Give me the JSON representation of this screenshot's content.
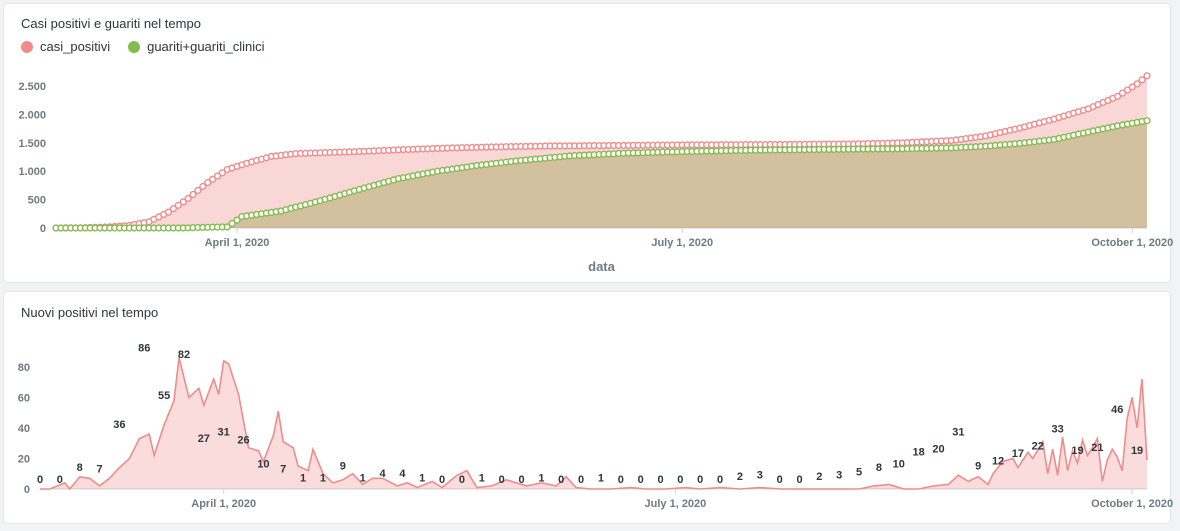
{
  "colors": {
    "positivi": "#ef8c8c",
    "guariti": "#84bb4c",
    "axis": "#6f7a83"
  },
  "chart_data": [
    {
      "type": "area",
      "title": "Casi positivi e guariti nel tempo",
      "xlabel": "data",
      "ylabel": "",
      "ylim": [
        0,
        2800
      ],
      "yticks": [
        {
          "value": 0,
          "label": "0"
        },
        {
          "value": 500,
          "label": "500"
        },
        {
          "value": 1000,
          "label": "1.000"
        },
        {
          "value": 1500,
          "label": "1.500"
        },
        {
          "value": 2000,
          "label": "2.000"
        },
        {
          "value": 2500,
          "label": "2.500"
        }
      ],
      "xlim": [
        "2020-02-24",
        "2020-10-04"
      ],
      "xticks": [
        {
          "date": "2020-04-01",
          "label": "April 1, 2020"
        },
        {
          "date": "2020-07-01",
          "label": "July 1, 2020"
        },
        {
          "date": "2020-10-01",
          "label": "October 1, 2020"
        }
      ],
      "legend": "top-left",
      "series": [
        {
          "name": "casi_positivi",
          "points": [
            [
              "2020-02-24",
              0
            ],
            [
              "2020-03-01",
              5
            ],
            [
              "2020-03-06",
              20
            ],
            [
              "2020-03-10",
              45
            ],
            [
              "2020-03-14",
              110
            ],
            [
              "2020-03-18",
              280
            ],
            [
              "2020-03-22",
              520
            ],
            [
              "2020-03-26",
              800
            ],
            [
              "2020-03-30",
              1030
            ],
            [
              "2020-04-03",
              1140
            ],
            [
              "2020-04-08",
              1260
            ],
            [
              "2020-04-13",
              1310
            ],
            [
              "2020-04-20",
              1330
            ],
            [
              "2020-04-27",
              1350
            ],
            [
              "2020-05-05",
              1380
            ],
            [
              "2020-05-15",
              1410
            ],
            [
              "2020-05-25",
              1430
            ],
            [
              "2020-06-05",
              1445
            ],
            [
              "2020-06-20",
              1455
            ],
            [
              "2020-07-05",
              1465
            ],
            [
              "2020-07-20",
              1470
            ],
            [
              "2020-08-05",
              1480
            ],
            [
              "2020-08-15",
              1500
            ],
            [
              "2020-08-25",
              1540
            ],
            [
              "2020-09-01",
              1620
            ],
            [
              "2020-09-08",
              1760
            ],
            [
              "2020-09-15",
              1920
            ],
            [
              "2020-09-22",
              2100
            ],
            [
              "2020-09-28",
              2320
            ],
            [
              "2020-10-02",
              2540
            ],
            [
              "2020-10-04",
              2680
            ]
          ]
        },
        {
          "name": "guariti+guariti_clinici",
          "points": [
            [
              "2020-02-24",
              0
            ],
            [
              "2020-03-10",
              0
            ],
            [
              "2020-03-20",
              0
            ],
            [
              "2020-03-30",
              20
            ],
            [
              "2020-04-02",
              200
            ],
            [
              "2020-04-10",
              300
            ],
            [
              "2020-04-18",
              480
            ],
            [
              "2020-04-26",
              680
            ],
            [
              "2020-05-04",
              870
            ],
            [
              "2020-05-12",
              1000
            ],
            [
              "2020-05-20",
              1100
            ],
            [
              "2020-05-28",
              1180
            ],
            [
              "2020-06-08",
              1270
            ],
            [
              "2020-06-20",
              1320
            ],
            [
              "2020-07-01",
              1345
            ],
            [
              "2020-07-15",
              1370
            ],
            [
              "2020-08-01",
              1385
            ],
            [
              "2020-08-15",
              1395
            ],
            [
              "2020-08-25",
              1410
            ],
            [
              "2020-09-01",
              1440
            ],
            [
              "2020-09-08",
              1490
            ],
            [
              "2020-09-15",
              1560
            ],
            [
              "2020-09-22",
              1690
            ],
            [
              "2020-09-28",
              1800
            ],
            [
              "2020-10-04",
              1890
            ]
          ]
        }
      ]
    },
    {
      "type": "area",
      "title": "Nuovi positivi nel tempo",
      "xlabel": "",
      "ylabel": "",
      "ylim": [
        0,
        95
      ],
      "yticks": [
        {
          "value": 0,
          "label": "0"
        },
        {
          "value": 20,
          "label": "20"
        },
        {
          "value": 40,
          "label": "40"
        },
        {
          "value": 60,
          "label": "60"
        },
        {
          "value": 80,
          "label": "80"
        }
      ],
      "xlim": [
        "2020-02-24",
        "2020-10-04"
      ],
      "xticks": [
        {
          "date": "2020-04-01",
          "label": "April 1, 2020"
        },
        {
          "date": "2020-07-01",
          "label": "July 1, 2020"
        },
        {
          "date": "2020-10-01",
          "label": "October 1, 2020"
        }
      ],
      "series": [
        {
          "name": "",
          "points": [
            [
              "2020-02-24",
              0
            ],
            [
              "2020-02-26",
              0
            ],
            [
              "2020-02-29",
              4
            ],
            [
              "2020-03-01",
              0
            ],
            [
              "2020-03-03",
              8
            ],
            [
              "2020-03-05",
              7
            ],
            [
              "2020-03-07",
              2
            ],
            [
              "2020-03-09",
              7
            ],
            [
              "2020-03-11",
              14
            ],
            [
              "2020-03-13",
              20
            ],
            [
              "2020-03-15",
              33
            ],
            [
              "2020-03-17",
              36
            ],
            [
              "2020-03-18",
              22
            ],
            [
              "2020-03-20",
              42
            ],
            [
              "2020-03-22",
              58
            ],
            [
              "2020-03-23",
              86
            ],
            [
              "2020-03-25",
              60
            ],
            [
              "2020-03-27",
              66
            ],
            [
              "2020-03-28",
              55
            ],
            [
              "2020-03-30",
              72
            ],
            [
              "2020-03-31",
              62
            ],
            [
              "2020-04-01",
              84
            ],
            [
              "2020-04-02",
              82
            ],
            [
              "2020-04-04",
              62
            ],
            [
              "2020-04-06",
              27
            ],
            [
              "2020-04-08",
              25
            ],
            [
              "2020-04-09",
              18
            ],
            [
              "2020-04-11",
              35
            ],
            [
              "2020-04-12",
              51
            ],
            [
              "2020-04-13",
              31
            ],
            [
              "2020-04-15",
              27
            ],
            [
              "2020-04-16",
              15
            ],
            [
              "2020-04-18",
              12
            ],
            [
              "2020-04-19",
              26
            ],
            [
              "2020-04-21",
              10
            ],
            [
              "2020-04-23",
              4
            ],
            [
              "2020-04-25",
              6
            ],
            [
              "2020-04-27",
              10
            ],
            [
              "2020-04-29",
              3
            ],
            [
              "2020-05-01",
              7
            ],
            [
              "2020-05-03",
              7
            ],
            [
              "2020-05-06",
              2
            ],
            [
              "2020-05-08",
              4
            ],
            [
              "2020-05-10",
              1
            ],
            [
              "2020-05-13",
              5
            ],
            [
              "2020-05-15",
              1
            ],
            [
              "2020-05-18",
              9
            ],
            [
              "2020-05-20",
              12
            ],
            [
              "2020-05-22",
              1
            ],
            [
              "2020-05-25",
              2
            ],
            [
              "2020-05-28",
              6
            ],
            [
              "2020-06-01",
              2
            ],
            [
              "2020-06-04",
              4
            ],
            [
              "2020-06-07",
              2
            ],
            [
              "2020-06-09",
              8
            ],
            [
              "2020-06-11",
              1
            ],
            [
              "2020-06-14",
              0
            ],
            [
              "2020-06-18",
              0
            ],
            [
              "2020-06-22",
              1
            ],
            [
              "2020-06-25",
              0
            ],
            [
              "2020-06-29",
              0
            ],
            [
              "2020-07-03",
              1
            ],
            [
              "2020-07-06",
              0
            ],
            [
              "2020-07-10",
              1
            ],
            [
              "2020-07-14",
              0
            ],
            [
              "2020-07-18",
              1
            ],
            [
              "2020-07-22",
              0
            ],
            [
              "2020-07-26",
              0
            ],
            [
              "2020-07-30",
              0
            ],
            [
              "2020-08-03",
              0
            ],
            [
              "2020-08-07",
              0
            ],
            [
              "2020-08-10",
              2
            ],
            [
              "2020-08-13",
              3
            ],
            [
              "2020-08-16",
              0
            ],
            [
              "2020-08-19",
              0
            ],
            [
              "2020-08-22",
              2
            ],
            [
              "2020-08-25",
              3
            ],
            [
              "2020-08-27",
              9
            ],
            [
              "2020-08-29",
              5
            ],
            [
              "2020-08-31",
              8
            ],
            [
              "2020-09-02",
              3
            ],
            [
              "2020-09-03",
              10
            ],
            [
              "2020-09-05",
              18
            ],
            [
              "2020-09-07",
              20
            ],
            [
              "2020-09-08",
              14
            ],
            [
              "2020-09-10",
              24
            ],
            [
              "2020-09-11",
              20
            ],
            [
              "2020-09-13",
              31
            ],
            [
              "2020-09-14",
              10
            ],
            [
              "2020-09-15",
              26
            ],
            [
              "2020-09-16",
              9
            ],
            [
              "2020-09-17",
              34
            ],
            [
              "2020-09-18",
              12
            ],
            [
              "2020-09-19",
              25
            ],
            [
              "2020-09-20",
              17
            ],
            [
              "2020-09-21",
              32
            ],
            [
              "2020-09-22",
              22
            ],
            [
              "2020-09-23",
              27
            ],
            [
              "2020-09-24",
              33
            ],
            [
              "2020-09-25",
              5
            ],
            [
              "2020-09-26",
              19
            ],
            [
              "2020-09-27",
              26
            ],
            [
              "2020-09-28",
              21
            ],
            [
              "2020-09-29",
              12
            ],
            [
              "2020-09-30",
              46
            ],
            [
              "2020-10-01",
              60
            ],
            [
              "2020-10-02",
              40
            ],
            [
              "2020-10-03",
              72
            ],
            [
              "2020-10-04",
              19
            ]
          ]
        }
      ],
      "data_labels": [
        [
          "2020-02-24",
          0,
          "0"
        ],
        [
          "2020-02-28",
          0,
          "0"
        ],
        [
          "2020-03-03",
          8,
          "8"
        ],
        [
          "2020-03-07",
          7,
          "7"
        ],
        [
          "2020-03-11",
          36,
          "36"
        ],
        [
          "2020-03-16",
          86,
          "86"
        ],
        [
          "2020-03-20",
          55,
          "55"
        ],
        [
          "2020-03-24",
          82,
          "82"
        ],
        [
          "2020-03-28",
          27,
          "27"
        ],
        [
          "2020-04-01",
          31,
          "31"
        ],
        [
          "2020-04-05",
          26,
          "26"
        ],
        [
          "2020-04-09",
          10,
          "10"
        ],
        [
          "2020-04-13",
          7,
          "7"
        ],
        [
          "2020-04-17",
          1,
          "1"
        ],
        [
          "2020-04-21",
          1,
          "1"
        ],
        [
          "2020-04-25",
          9,
          "9"
        ],
        [
          "2020-04-29",
          1,
          "1"
        ],
        [
          "2020-05-03",
          4,
          "4"
        ],
        [
          "2020-05-07",
          4,
          "4"
        ],
        [
          "2020-05-11",
          1,
          "1"
        ],
        [
          "2020-05-15",
          0,
          "0"
        ],
        [
          "2020-05-19",
          0,
          "0"
        ],
        [
          "2020-05-23",
          1,
          "1"
        ],
        [
          "2020-05-27",
          0,
          "0"
        ],
        [
          "2020-05-31",
          0,
          "0"
        ],
        [
          "2020-06-04",
          1,
          "1"
        ],
        [
          "2020-06-08",
          0,
          "0"
        ],
        [
          "2020-06-12",
          0,
          "0"
        ],
        [
          "2020-06-16",
          1,
          "1"
        ],
        [
          "2020-06-20",
          0,
          "0"
        ],
        [
          "2020-06-24",
          0,
          "0"
        ],
        [
          "2020-06-28",
          0,
          "0"
        ],
        [
          "2020-07-02",
          0,
          "0"
        ],
        [
          "2020-07-06",
          0,
          "0"
        ],
        [
          "2020-07-10",
          0,
          "0"
        ],
        [
          "2020-07-14",
          2,
          "2"
        ],
        [
          "2020-07-18",
          3,
          "3"
        ],
        [
          "2020-07-22",
          0,
          "0"
        ],
        [
          "2020-07-26",
          0,
          "0"
        ],
        [
          "2020-07-30",
          2,
          "2"
        ],
        [
          "2020-08-03",
          3,
          "3"
        ],
        [
          "2020-08-07",
          5,
          "5"
        ],
        [
          "2020-08-11",
          8,
          "8"
        ],
        [
          "2020-08-15",
          10,
          "10"
        ],
        [
          "2020-08-19",
          18,
          "18"
        ],
        [
          "2020-08-23",
          20,
          "20"
        ],
        [
          "2020-08-27",
          31,
          "31"
        ],
        [
          "2020-08-31",
          9,
          "9"
        ],
        [
          "2020-09-04",
          12,
          "12"
        ],
        [
          "2020-09-08",
          17,
          "17"
        ],
        [
          "2020-09-12",
          22,
          "22"
        ],
        [
          "2020-09-16",
          33,
          "33"
        ],
        [
          "2020-09-20",
          19,
          "19"
        ],
        [
          "2020-09-24",
          21,
          "21"
        ],
        [
          "2020-09-28",
          46,
          "46"
        ],
        [
          "2020-10-02",
          19,
          "19"
        ]
      ]
    }
  ]
}
